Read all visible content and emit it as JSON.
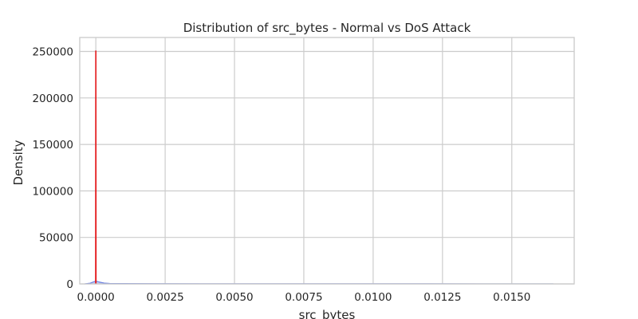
{
  "chart_data": {
    "type": "area",
    "title": "Distribution of src_bytes - Normal vs DoS Attack",
    "xlabel": "src_bytes",
    "ylabel": "Density",
    "xlim": [
      -0.00058,
      0.01725
    ],
    "ylim": [
      0,
      265000
    ],
    "x_ticks": [
      0,
      0.0025,
      0.005,
      0.0075,
      0.01,
      0.0125,
      0.015
    ],
    "x_tick_labels": [
      "0.0000",
      "0.0025",
      "0.0050",
      "0.0075",
      "0.0100",
      "0.0125",
      "0.0150"
    ],
    "y_ticks": [
      0,
      50000,
      100000,
      150000,
      200000,
      250000
    ],
    "y_tick_labels": [
      "0",
      "50000",
      "100000",
      "150000",
      "200000",
      "250000"
    ],
    "grid": true,
    "legend": "none",
    "series": [
      {
        "color": "#6a7fe0",
        "fill_opacity": 0.35,
        "x": [
          -0.0004,
          -0.0002,
          -0.0001,
          0,
          0.0001,
          0.0002,
          0.0003,
          0.0005,
          0.001,
          0.002,
          0.004,
          0.006,
          0.008,
          0.01,
          0.012,
          0.014,
          0.0165
        ],
        "y": [
          0,
          800,
          2000,
          3000,
          2200,
          1500,
          900,
          500,
          300,
          200,
          150,
          120,
          100,
          90,
          80,
          70,
          60
        ]
      },
      {
        "color": "#e41a1c",
        "fill_opacity": 0.35,
        "x": [
          -5e-06,
          0,
          5e-06
        ],
        "y": [
          0,
          251000,
          0
        ]
      }
    ]
  }
}
